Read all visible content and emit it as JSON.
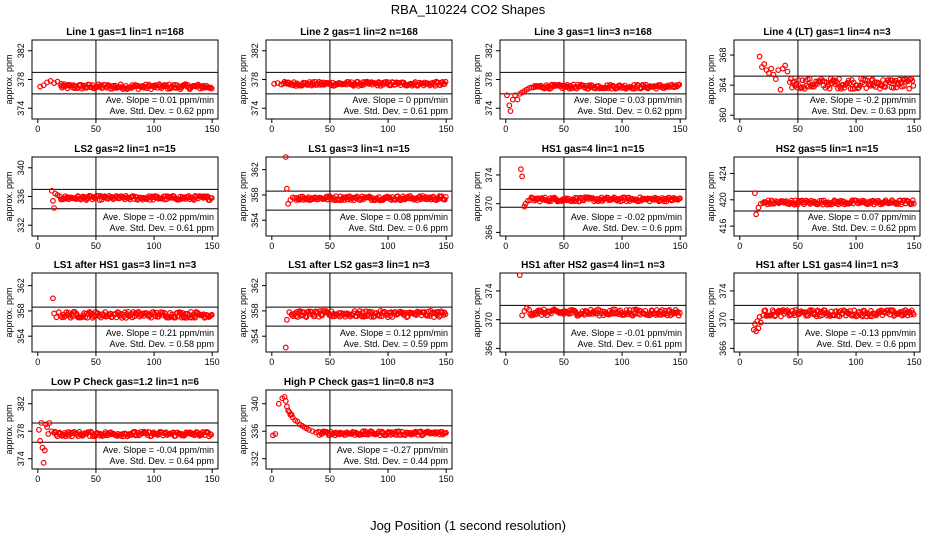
{
  "figure": {
    "title": "RBA_110224  CO2 Shapes",
    "xlabel": "Jog Position (1 second resolution)",
    "marker_color": "#ff0000"
  },
  "chart_data": [
    {
      "type": "scatter",
      "title": "Line 1 gas=1 lin=1 n=168",
      "ylabel": "approx. ppm",
      "xlim": [
        -5,
        155
      ],
      "ylim": [
        372.5,
        383.5
      ],
      "xticks": [
        0,
        50,
        100,
        150
      ],
      "yticks": [
        374,
        378,
        382
      ],
      "vline": 50,
      "hlines": [
        379.0,
        376.0
      ],
      "center": 377.0,
      "slope_text": "Ave. Slope = 0.01 ppm/min",
      "std_text": "Ave. Std. Dev. = 0.62 ppm",
      "points": [
        [
          2,
          377.0
        ],
        [
          5,
          377.2
        ],
        [
          8,
          377.6
        ],
        [
          11,
          377.8
        ],
        [
          14,
          377.5
        ],
        [
          17,
          377.7
        ],
        [
          20,
          377.4
        ]
      ],
      "band_from": 20,
      "band_to": 150,
      "band_noise": 0.35
    },
    {
      "type": "scatter",
      "title": "Line 2 gas=1 lin=2 n=168",
      "ylabel": "approx. ppm",
      "xlim": [
        -5,
        155
      ],
      "ylim": [
        372.5,
        383.5
      ],
      "xticks": [
        0,
        50,
        100,
        150
      ],
      "yticks": [
        374,
        378,
        382
      ],
      "vline": 50,
      "hlines": [
        379.0,
        376.0
      ],
      "center": 377.4,
      "slope_text": "Ave. Slope = 0 ppm/min",
      "std_text": "Ave. Std. Dev. = 0.61 ppm",
      "points": [
        [
          2,
          377.4
        ],
        [
          5,
          377.5
        ],
        [
          8,
          377.3
        ]
      ],
      "band_from": 10,
      "band_to": 150,
      "band_noise": 0.3
    },
    {
      "type": "scatter",
      "title": "Line 3 gas=1 lin=3 n=168",
      "ylabel": "approx. ppm",
      "xlim": [
        -5,
        155
      ],
      "ylim": [
        372.5,
        383.5
      ],
      "xticks": [
        0,
        50,
        100,
        150
      ],
      "yticks": [
        374,
        378,
        382
      ],
      "vline": 50,
      "hlines": [
        379.0,
        376.0
      ],
      "center": 377.0,
      "slope_text": "Ave. Slope = 0.03 ppm/min",
      "std_text": "Ave. Std. Dev. = 0.62 ppm",
      "points": [
        [
          1,
          375.8
        ],
        [
          3,
          374.4
        ],
        [
          4,
          373.6
        ],
        [
          6,
          375.2
        ],
        [
          8,
          375.8
        ],
        [
          10,
          375.2
        ],
        [
          12,
          376.0
        ],
        [
          14,
          376.2
        ],
        [
          16,
          376.4
        ],
        [
          18,
          376.6
        ],
        [
          20,
          376.8
        ],
        [
          22,
          376.9
        ],
        [
          24,
          376.9
        ]
      ],
      "band_from": 25,
      "band_to": 150,
      "band_noise": 0.3
    },
    {
      "type": "scatter",
      "title": "Line 4 (LT) gas=1 lin=4 n=3",
      "ylabel": "approx. ppm",
      "xlim": [
        -5,
        155
      ],
      "ylim": [
        359.5,
        370.0
      ],
      "xticks": [
        0,
        50,
        100,
        150
      ],
      "yticks": [
        360,
        364,
        368
      ],
      "vline": 50,
      "hlines": [
        365.2,
        362.8
      ],
      "center": 364.2,
      "slope_text": "Ave. Slope = -0.2 ppm/min",
      "std_text": "Ave. Std. Dev. = 0.63 ppm",
      "points": [
        [
          17,
          367.8
        ],
        [
          19,
          366.4
        ],
        [
          21,
          366.8
        ],
        [
          23,
          366.0
        ],
        [
          25,
          365.6
        ],
        [
          27,
          366.2
        ],
        [
          29,
          365.4
        ],
        [
          31,
          364.8
        ],
        [
          33,
          366.0
        ],
        [
          35,
          363.4
        ],
        [
          37,
          366.2
        ],
        [
          39,
          366.6
        ],
        [
          41,
          365.8
        ],
        [
          43,
          364.4
        ]
      ],
      "band_from": 44,
      "band_to": 150,
      "band_noise": 0.7
    },
    {
      "type": "scatter",
      "title": "LS2 gas=2 lin=1 n=15",
      "ylabel": "approx. ppm",
      "xlim": [
        -5,
        155
      ],
      "ylim": [
        330.5,
        341.5
      ],
      "xticks": [
        0,
        50,
        100,
        150
      ],
      "yticks": [
        332,
        336,
        340
      ],
      "vline": 50,
      "hlines": [
        337.0,
        334.3
      ],
      "center": 335.8,
      "slope_text": "Ave. Slope = -0.02 ppm/min",
      "std_text": "Ave. Std. Dev. = 0.61 ppm",
      "points": [
        [
          12,
          336.8
        ],
        [
          13,
          335.4
        ],
        [
          14,
          334.4
        ],
        [
          15,
          336.4
        ],
        [
          17,
          336.2
        ],
        [
          19,
          336.0
        ]
      ],
      "band_from": 20,
      "band_to": 150,
      "band_noise": 0.3
    },
    {
      "type": "scatter",
      "title": "LS1 gas=3 lin=1 n=15",
      "ylabel": "approx. ppm",
      "xlim": [
        -5,
        155
      ],
      "ylim": [
        351.5,
        364.0
      ],
      "xticks": [
        0,
        50,
        100,
        150
      ],
      "yticks": [
        354,
        358,
        362
      ],
      "vline": 50,
      "hlines": [
        358.6,
        355.6
      ],
      "center": 357.5,
      "slope_text": "Ave. Slope = 0.08 ppm/min",
      "std_text": "Ave. Std. Dev. = 0.6 ppm",
      "points": [
        [
          12,
          364.0
        ],
        [
          13,
          359.0
        ],
        [
          14,
          356.6
        ],
        [
          16,
          357.2
        ],
        [
          18,
          357.6
        ],
        [
          20,
          357.5
        ]
      ],
      "band_from": 21,
      "band_to": 150,
      "band_noise": 0.35
    },
    {
      "type": "scatter",
      "title": "HS1 gas=4 lin=1 n=15",
      "ylabel": "approx. ppm",
      "xlim": [
        -5,
        155
      ],
      "ylim": [
        365.5,
        376.5
      ],
      "xticks": [
        0,
        50,
        100,
        150
      ],
      "yticks": [
        366,
        370,
        374
      ],
      "vline": 50,
      "hlines": [
        372.0,
        369.5
      ],
      "center": 370.6,
      "slope_text": "Ave. Slope = -0.02 ppm/min",
      "std_text": "Ave. Std. Dev. = 0.6 ppm",
      "points": [
        [
          13,
          374.8
        ],
        [
          14,
          373.8
        ],
        [
          16,
          369.6
        ],
        [
          17,
          370.0
        ],
        [
          19,
          370.4
        ],
        [
          21,
          370.5
        ]
      ],
      "band_from": 22,
      "band_to": 150,
      "band_noise": 0.3
    },
    {
      "type": "scatter",
      "title": "HS2 gas=5 lin=1 n=15",
      "ylabel": "approx. ppm",
      "xlim": [
        -5,
        155
      ],
      "ylim": [
        414.5,
        426.5
      ],
      "xticks": [
        0,
        50,
        100,
        150
      ],
      "yticks": [
        416,
        420,
        424
      ],
      "vline": 50,
      "hlines": [
        421.3,
        418.3
      ],
      "center": 419.6,
      "slope_text": "Ave. Slope = 0.07 ppm/min",
      "std_text": "Ave. Std. Dev. = 0.62 ppm",
      "points": [
        [
          13,
          421.0
        ],
        [
          14,
          417.8
        ],
        [
          16,
          418.8
        ],
        [
          18,
          419.4
        ],
        [
          20,
          419.5
        ]
      ],
      "band_from": 21,
      "band_to": 150,
      "band_noise": 0.35
    },
    {
      "type": "scatter",
      "title": "LS1 after HS1 gas=3 lin=1 n=3",
      "ylabel": "approx. ppm",
      "xlim": [
        -5,
        155
      ],
      "ylim": [
        351.5,
        364.0
      ],
      "xticks": [
        0,
        50,
        100,
        150
      ],
      "yticks": [
        354,
        358,
        362
      ],
      "vline": 50,
      "hlines": [
        358.6,
        355.6
      ],
      "center": 357.4,
      "slope_text": "Ave. Slope = 0.21 ppm/min",
      "std_text": "Ave. Std. Dev. = 0.58 ppm",
      "points": [
        [
          13,
          360.0
        ],
        [
          14,
          357.6
        ],
        [
          16,
          357.0
        ],
        [
          18,
          357.8
        ],
        [
          20,
          357.2
        ]
      ],
      "band_from": 21,
      "band_to": 150,
      "band_noise": 0.5
    },
    {
      "type": "scatter",
      "title": "LS1 after LS2 gas=3 lin=1 n=3",
      "ylabel": "approx. ppm",
      "xlim": [
        -5,
        155
      ],
      "ylim": [
        351.5,
        364.0
      ],
      "xticks": [
        0,
        50,
        100,
        150
      ],
      "yticks": [
        354,
        358,
        362
      ],
      "vline": 50,
      "hlines": [
        358.6,
        355.6
      ],
      "center": 357.5,
      "slope_text": "Ave. Slope = 0.12 ppm/min",
      "std_text": "Ave. Std. Dev. = 0.59 ppm",
      "points": [
        [
          12,
          352.2
        ],
        [
          13,
          356.6
        ],
        [
          15,
          357.8
        ],
        [
          17,
          357.4
        ]
      ],
      "band_from": 18,
      "band_to": 150,
      "band_noise": 0.5
    },
    {
      "type": "scatter",
      "title": "HS1 after HS2 gas=4 lin=1 n=3",
      "ylabel": "approx. ppm",
      "xlim": [
        -5,
        155
      ],
      "ylim": [
        365.5,
        376.5
      ],
      "xticks": [
        0,
        50,
        100,
        150
      ],
      "yticks": [
        366,
        370,
        374
      ],
      "vline": 50,
      "hlines": [
        372.0,
        369.5
      ],
      "center": 371.0,
      "slope_text": "Ave. Slope = -0.01 ppm/min",
      "std_text": "Ave. Std. Dev. = 0.61 ppm",
      "points": [
        [
          12,
          376.2
        ],
        [
          14,
          370.6
        ],
        [
          16,
          371.2
        ],
        [
          18,
          371.6
        ],
        [
          20,
          371.4
        ]
      ],
      "band_from": 21,
      "band_to": 150,
      "band_noise": 0.45
    },
    {
      "type": "scatter",
      "title": "HS1 after LS1 gas=4 lin=1 n=3",
      "ylabel": "approx. ppm",
      "xlim": [
        -5,
        155
      ],
      "ylim": [
        365.5,
        376.5
      ],
      "xticks": [
        0,
        50,
        100,
        150
      ],
      "yticks": [
        366,
        370,
        374
      ],
      "vline": 50,
      "hlines": [
        372.0,
        369.5
      ],
      "center": 370.9,
      "slope_text": "Ave. Slope = -0.13 ppm/min",
      "std_text": "Ave. Std. Dev. = 0.6 ppm",
      "points": [
        [
          12,
          368.6
        ],
        [
          13,
          369.4
        ],
        [
          14,
          368.4
        ],
        [
          15,
          369.8
        ],
        [
          16,
          368.8
        ],
        [
          17,
          370.4
        ],
        [
          18,
          369.6
        ],
        [
          20,
          370.6
        ]
      ],
      "band_from": 21,
      "band_to": 150,
      "band_noise": 0.45
    },
    {
      "type": "scatter",
      "title": "Low P Check gas=1.2 lin=1 n=6",
      "ylabel": "approx. ppm",
      "xlim": [
        -5,
        155
      ],
      "ylim": [
        372.5,
        384.0
      ],
      "xticks": [
        0,
        50,
        100,
        150
      ],
      "yticks": [
        374,
        378,
        382
      ],
      "vline": 50,
      "hlines": [
        379.2,
        376.4
      ],
      "center": 377.6,
      "slope_text": "Ave. Slope = -0.04 ppm/min",
      "std_text": "Ave. Std. Dev. = 0.64 ppm",
      "points": [
        [
          1,
          378.2
        ],
        [
          2,
          376.6
        ],
        [
          3,
          379.2
        ],
        [
          4,
          375.6
        ],
        [
          5,
          373.4
        ],
        [
          6,
          375.2
        ],
        [
          7,
          379.0
        ],
        [
          8,
          378.6
        ],
        [
          9,
          377.6
        ],
        [
          10,
          379.2
        ],
        [
          12,
          378.0
        ],
        [
          14,
          377.8
        ]
      ],
      "band_from": 15,
      "band_to": 150,
      "band_noise": 0.35
    },
    {
      "type": "scatter",
      "title": "High P Check gas=1 lin=0.8 n=3",
      "ylabel": "approx. ppm",
      "xlim": [
        -5,
        155
      ],
      "ylim": [
        330.5,
        342.0
      ],
      "xticks": [
        0,
        50,
        100,
        150
      ],
      "yticks": [
        332,
        336,
        340
      ],
      "vline": 50,
      "hlines": [
        336.8,
        334.3
      ],
      "center": 335.7,
      "slope_text": "Ave. Slope = -0.27 ppm/min",
      "std_text": "Ave. Std. Dev. = 0.44 ppm",
      "points": [
        [
          1,
          335.4
        ],
        [
          3,
          335.6
        ],
        [
          6,
          340.0
        ],
        [
          9,
          340.8
        ],
        [
          11,
          341.0
        ],
        [
          12,
          340.4
        ],
        [
          13,
          339.6
        ],
        [
          14,
          339.0
        ],
        [
          15,
          338.8
        ],
        [
          16,
          338.4
        ],
        [
          17,
          338.4
        ],
        [
          18,
          338.0
        ],
        [
          20,
          337.6
        ],
        [
          22,
          337.4
        ],
        [
          24,
          337.0
        ],
        [
          26,
          336.8
        ],
        [
          28,
          336.6
        ],
        [
          30,
          336.4
        ],
        [
          32,
          336.2
        ],
        [
          35,
          336.0
        ],
        [
          38,
          335.8
        ]
      ],
      "band_from": 40,
      "band_to": 150,
      "band_noise": 0.3
    }
  ]
}
